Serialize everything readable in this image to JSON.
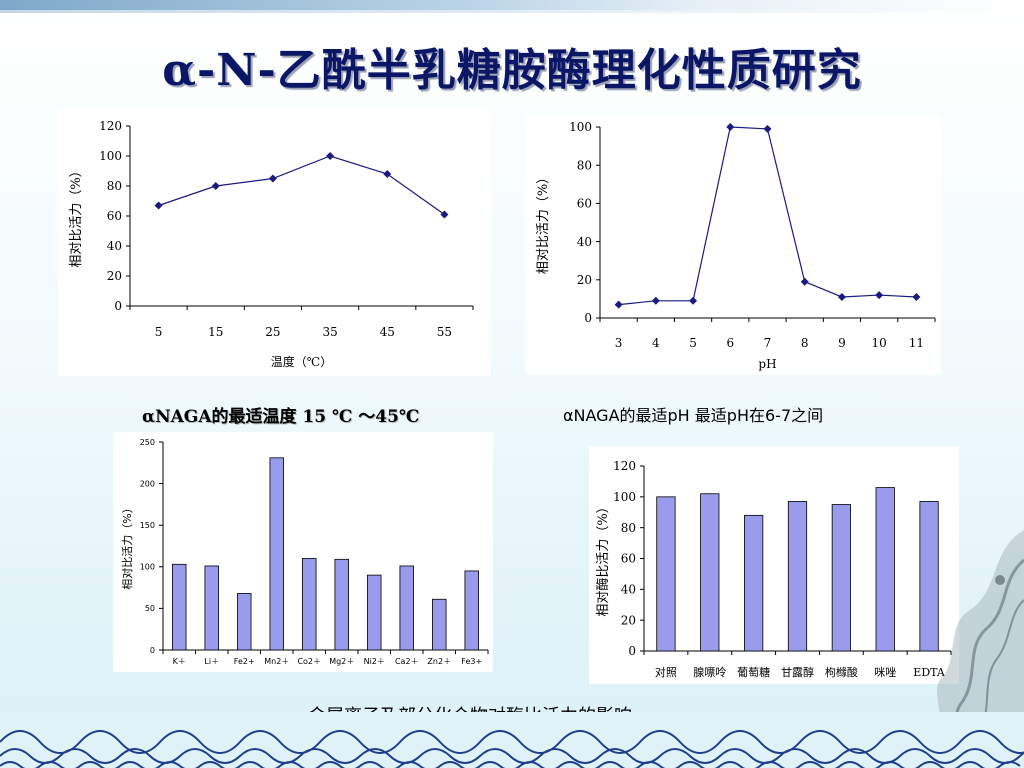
{
  "title": "α-N-乙酰半乳糖胺酶理化性质研究",
  "captions": {
    "temp": "αNAGA的最适温度 15 ℃ ～45℃",
    "ph": "αNAGA的最适pH  最适pH在6-7之间",
    "ions": "金属离子及部分化合物对酶比活力的影响"
  },
  "chart_data": [
    {
      "type": "line",
      "x": [
        5,
        15,
        25,
        35,
        45,
        55
      ],
      "values": [
        67,
        80,
        85,
        100,
        88,
        61
      ],
      "xlabel": "温度（℃）",
      "ylabel": "相对比活力（%）",
      "ylim": [
        0,
        120
      ],
      "yticks": [
        0,
        20,
        40,
        60,
        80,
        100,
        120
      ],
      "color": "#1a1a80"
    },
    {
      "type": "line",
      "x": [
        3,
        4,
        5,
        6,
        7,
        8,
        9,
        10,
        11
      ],
      "values": [
        7,
        9,
        9,
        100,
        99,
        19,
        11,
        12,
        11
      ],
      "xlabel": "pH",
      "ylabel": "相对比活力（%）",
      "ylim": [
        0,
        100
      ],
      "yticks": [
        0,
        20,
        40,
        60,
        80,
        100
      ],
      "color": "#1a1a80"
    },
    {
      "type": "bar",
      "categories": [
        "K＋",
        "Li＋",
        "Fe2+",
        "Mn2＋",
        "Co2＋",
        "Mg2＋",
        "Ni2＋",
        "Ca2＋",
        "Zn2＋",
        "Fe3+"
      ],
      "values": [
        103,
        101,
        68,
        231,
        110,
        109,
        90,
        101,
        61,
        95
      ],
      "ylabel": "相对比活力（%）",
      "ylim": [
        0,
        250
      ],
      "yticks": [
        0,
        50,
        100,
        150,
        200,
        250
      ],
      "color": "#9b9bee"
    },
    {
      "type": "bar",
      "categories": [
        "对照",
        "腺嘌呤",
        "葡萄糖",
        "甘露醇",
        "枸橼酸",
        "咪唑",
        "EDTA"
      ],
      "values": [
        100,
        102,
        88,
        97,
        95,
        106,
        97
      ],
      "ylabel": "相对酶比活力（%）",
      "ylim": [
        0,
        120
      ],
      "yticks": [
        0,
        20,
        40,
        60,
        80,
        100,
        120
      ],
      "color": "#9b9bee"
    }
  ]
}
